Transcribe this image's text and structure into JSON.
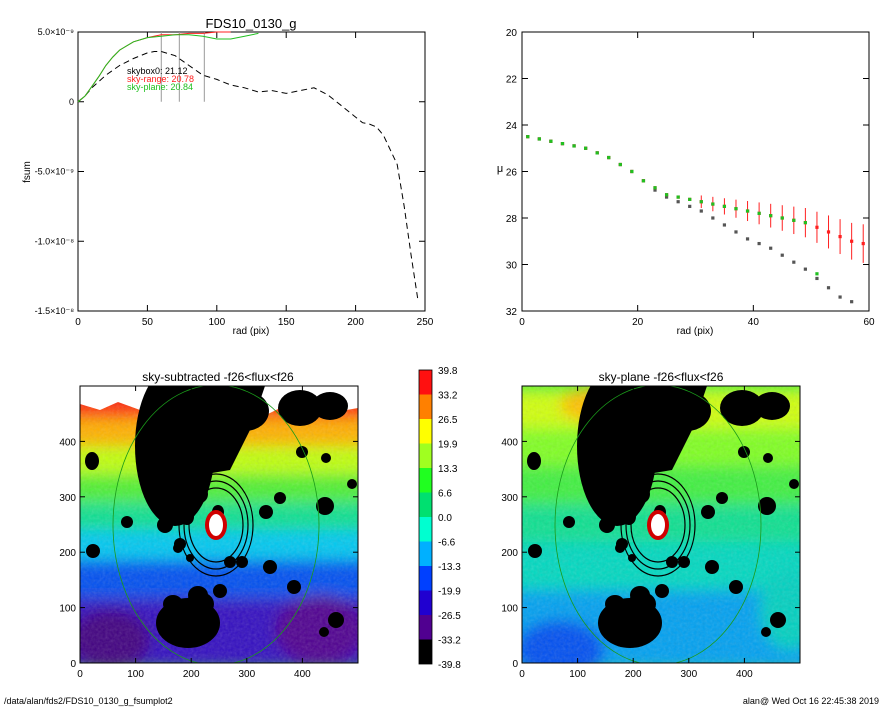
{
  "footer": {
    "left": "/data/alan/fds2/FDS10_0130_g_fsumplot2",
    "right": "alan@  Wed Oct 16 22:45:38 2019"
  },
  "chart_data": [
    {
      "id": "fsum",
      "type": "line",
      "title": "FDS10_0130_g",
      "xlabel": "rad (pix)",
      "ylabel": "fsum",
      "xlim": [
        0,
        250
      ],
      "ylim": [
        -1.5e-08,
        5e-09
      ],
      "x_ticks": [
        "0",
        "50",
        "100",
        "150",
        "200",
        "250"
      ],
      "y_ticks": [
        "5.0×10⁻⁹",
        "0",
        "-5.0×10⁻⁹",
        "-1.0×10⁻⁸",
        "-1.5×10⁻⁸"
      ],
      "y_tick_values": [
        5e-09,
        0,
        -5e-09,
        -1e-08,
        -1.5e-08
      ],
      "annotations": [
        {
          "text": "skybox0: 21.12",
          "color": "#000000"
        },
        {
          "text": "sky-range: 20.78",
          "color": "#ff2020"
        },
        {
          "text": "sky-plane: 20.84",
          "color": "#20c020"
        }
      ],
      "vlines": [
        60,
        73,
        91
      ],
      "series": [
        {
          "style": "dashed",
          "color": "#000000",
          "x": [
            0,
            5,
            10,
            20,
            30,
            40,
            50,
            55,
            60,
            70,
            80,
            90,
            100,
            110,
            120,
            130,
            140,
            150,
            160,
            170,
            180,
            190,
            200,
            205,
            210,
            215,
            220,
            230,
            235,
            240,
            245
          ],
          "y": [
            0,
            4e-10,
            1e-09,
            1.9e-09,
            2.6e-09,
            3.1e-09,
            3.5e-09,
            3.6e-09,
            3.6e-09,
            3.3e-09,
            2.6e-09,
            1.9e-09,
            1.6e-09,
            1.2e-09,
            1e-09,
            7e-10,
            8e-10,
            6e-10,
            8e-10,
            1e-09,
            5e-10,
            -3e-10,
            -1.1e-09,
            -1.5e-09,
            -1.6e-09,
            -1.8e-09,
            -2.4e-09,
            -4.5e-09,
            -7.5e-09,
            -1.1e-08,
            -1.43e-08
          ]
        },
        {
          "style": "solid",
          "color": "#ff2020",
          "x": [
            0,
            5,
            10,
            15,
            20,
            25,
            30,
            40,
            50,
            60,
            70,
            80,
            90,
            100,
            110
          ],
          "y": [
            0,
            4e-10,
            1.1e-09,
            1.8e-09,
            2.6e-09,
            3.2e-09,
            3.7e-09,
            4.3e-09,
            4.6e-09,
            4.8e-09,
            4.8e-09,
            4.9e-09,
            4.9e-09,
            5e-09,
            5e-09
          ]
        },
        {
          "style": "solid",
          "color": "#20c020",
          "x": [
            0,
            5,
            10,
            15,
            20,
            25,
            30,
            40,
            50,
            60,
            70,
            80,
            90,
            100,
            110,
            120,
            130
          ],
          "y": [
            0,
            4e-10,
            1.1e-09,
            1.8e-09,
            2.6e-09,
            3.2e-09,
            3.7e-09,
            4.3e-09,
            4.6e-09,
            4.7e-09,
            4.8e-09,
            4.8e-09,
            4.7e-09,
            4.5e-09,
            4.5e-09,
            4.7e-09,
            4.9e-09
          ]
        }
      ]
    },
    {
      "id": "profile",
      "type": "scatter",
      "title": "",
      "xlabel": "rad (pix)",
      "ylabel": "μ",
      "xlim": [
        0,
        60
      ],
      "ylim": [
        20,
        32
      ],
      "y_inverted": true,
      "x_ticks": [
        "0",
        "20",
        "40",
        "60"
      ],
      "y_ticks": [
        "20",
        "22",
        "24",
        "26",
        "28",
        "30",
        "32"
      ],
      "series": [
        {
          "color": "#555555",
          "x": [
            1,
            3,
            5,
            7,
            9,
            11,
            13,
            15,
            17,
            19,
            21,
            23,
            25,
            27,
            29,
            31,
            33,
            35,
            37,
            39,
            41,
            43,
            45,
            47,
            49,
            51,
            53,
            55,
            57
          ],
          "y": [
            24.5,
            24.6,
            24.7,
            24.8,
            24.9,
            25.0,
            25.2,
            25.4,
            25.7,
            26.0,
            26.4,
            26.8,
            27.1,
            27.3,
            27.5,
            27.7,
            28.0,
            28.3,
            28.6,
            28.9,
            29.1,
            29.3,
            29.6,
            29.9,
            30.2,
            30.6,
            31.0,
            31.4,
            31.6
          ]
        },
        {
          "color": "#ff2020",
          "x": [
            1,
            3,
            5,
            7,
            9,
            11,
            13,
            15,
            17,
            19,
            21,
            23,
            25,
            27,
            29,
            31,
            33,
            35,
            37,
            39,
            41,
            43,
            45,
            47,
            49,
            51,
            53,
            55,
            57,
            59
          ],
          "y": [
            24.5,
            24.6,
            24.7,
            24.8,
            24.9,
            25.0,
            25.2,
            25.4,
            25.7,
            26.0,
            26.4,
            26.7,
            27.0,
            27.1,
            27.2,
            27.3,
            27.4,
            27.5,
            27.6,
            27.7,
            27.8,
            27.9,
            28.0,
            28.1,
            28.2,
            28.4,
            28.6,
            28.8,
            29.0,
            29.1
          ]
        },
        {
          "color": "#20c020",
          "x": [
            1,
            3,
            5,
            7,
            9,
            11,
            13,
            15,
            17,
            19,
            21,
            23,
            25,
            27,
            29,
            31,
            33,
            35,
            37,
            39,
            41,
            43,
            45,
            47,
            49,
            51
          ],
          "y": [
            24.5,
            24.6,
            24.7,
            24.8,
            24.9,
            25.0,
            25.2,
            25.4,
            25.7,
            26.0,
            26.4,
            26.7,
            27.0,
            27.1,
            27.2,
            27.3,
            27.4,
            27.5,
            27.6,
            27.7,
            27.8,
            27.9,
            28.0,
            28.1,
            28.2,
            30.4
          ]
        }
      ]
    },
    {
      "id": "sky-subtracted",
      "type": "heatmap",
      "title": "sky-subtracted -f26<flux<f26",
      "xlim": [
        0,
        500
      ],
      "ylim": [
        0,
        500
      ],
      "x_ticks": [
        "0",
        "100",
        "200",
        "300",
        "400"
      ],
      "y_ticks": [
        "0",
        "100",
        "200",
        "300",
        "400"
      ],
      "center": [
        245,
        250
      ]
    },
    {
      "id": "sky-plane",
      "type": "heatmap",
      "title": "sky-plane -f26<flux<f26",
      "xlim": [
        0,
        500
      ],
      "ylim": [
        0,
        500
      ],
      "x_ticks": [
        "0",
        "100",
        "200",
        "300",
        "400"
      ],
      "y_ticks": [
        "0",
        "100",
        "200",
        "300",
        "400"
      ],
      "center": [
        245,
        250
      ]
    },
    {
      "id": "colorbar",
      "type": "colorbar",
      "labels": [
        "39.8",
        "33.2",
        "26.5",
        "19.9",
        "13.3",
        "6.6",
        "0.0",
        "-6.6",
        "-13.3",
        "-19.9",
        "-26.5",
        "-33.2",
        "-39.8"
      ],
      "colors": [
        "#ff1010",
        "#ff8000",
        "#ffff00",
        "#a0ff20",
        "#20ff20",
        "#00e070",
        "#00ffd0",
        "#00b0ff",
        "#0040ff",
        "#2000d0",
        "#500090",
        "#000000"
      ]
    }
  ]
}
